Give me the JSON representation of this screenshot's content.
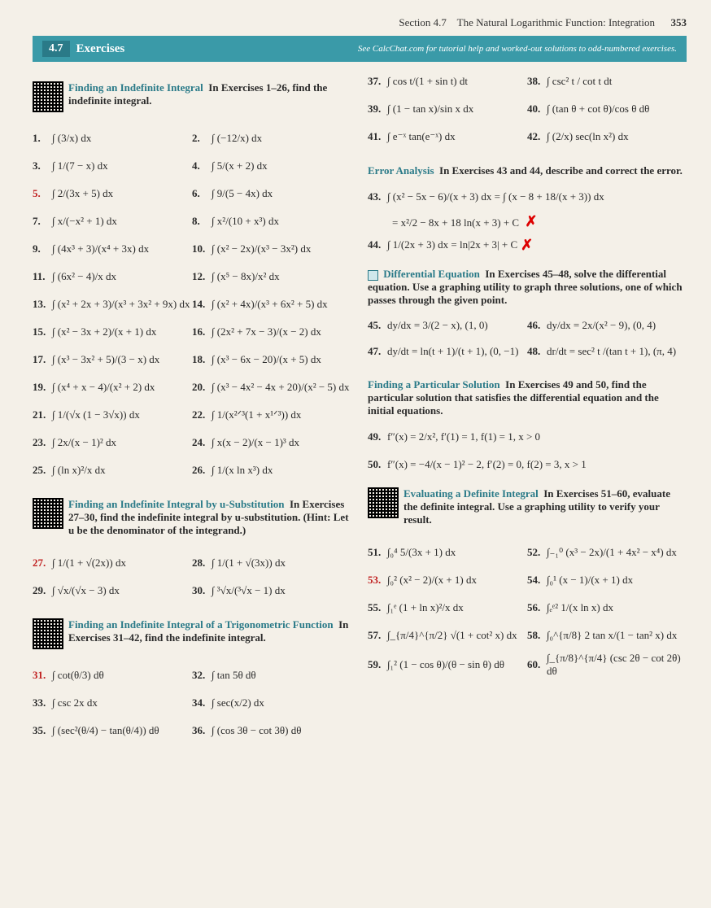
{
  "header": {
    "section_label": "Section 4.7",
    "section_title": "The Natural Logarithmic Function: Integration",
    "page_num": "353"
  },
  "bar": {
    "num": "4.7",
    "title": "Exercises",
    "help": "See CalcChat.com for tutorial help and worked-out solutions to odd-numbered exercises."
  },
  "groupA": {
    "title": "Finding an Indefinite Integral",
    "intro": "In Exercises 1–26, find the indefinite integral."
  },
  "left_col_A": [
    {
      "n": "1.",
      "e": "∫ (3/x) dx"
    },
    {
      "n": "2.",
      "e": "∫ (−12/x) dx"
    },
    {
      "n": "3.",
      "e": "∫ 1/(7 − x) dx"
    },
    {
      "n": "4.",
      "e": "∫ 5/(x + 2) dx"
    },
    {
      "n": "5.",
      "e": "∫ 2/(3x + 5) dx",
      "red": true
    },
    {
      "n": "6.",
      "e": "∫ 9/(5 − 4x) dx"
    },
    {
      "n": "7.",
      "e": "∫ x/(−x² + 1) dx"
    },
    {
      "n": "8.",
      "e": "∫ x²/(10 + x³) dx"
    },
    {
      "n": "9.",
      "e": "∫ (4x³ + 3)/(x⁴ + 3x) dx"
    },
    {
      "n": "10.",
      "e": "∫ (x² − 2x)/(x³ − 3x²) dx"
    },
    {
      "n": "11.",
      "e": "∫ (6x² − 4)/x dx"
    },
    {
      "n": "12.",
      "e": "∫ (x⁵ − 8x)/x² dx"
    },
    {
      "n": "13.",
      "e": "∫ (x² + 2x + 3)/(x³ + 3x² + 9x) dx"
    },
    {
      "n": "14.",
      "e": "∫ (x² + 4x)/(x³ + 6x² + 5) dx"
    },
    {
      "n": "15.",
      "e": "∫ (x² − 3x + 2)/(x + 1) dx"
    },
    {
      "n": "16.",
      "e": "∫ (2x² + 7x − 3)/(x − 2) dx"
    },
    {
      "n": "17.",
      "e": "∫ (x³ − 3x² + 5)/(3 − x) dx"
    },
    {
      "n": "18.",
      "e": "∫ (x³ − 6x − 20)/(x + 5) dx"
    },
    {
      "n": "19.",
      "e": "∫ (x⁴ + x − 4)/(x² + 2) dx"
    },
    {
      "n": "20.",
      "e": "∫ (x³ − 4x² − 4x + 20)/(x² − 5) dx"
    },
    {
      "n": "21.",
      "e": "∫ 1/(√x (1 − 3√x)) dx"
    },
    {
      "n": "22.",
      "e": "∫ 1/(x²ᐟ³(1 + x¹ᐟ³)) dx"
    },
    {
      "n": "23.",
      "e": "∫ 2x/(x − 1)² dx"
    },
    {
      "n": "24.",
      "e": "∫ x(x − 2)/(x − 1)³ dx"
    },
    {
      "n": "25.",
      "e": "∫ (ln x)²/x dx"
    },
    {
      "n": "26.",
      "e": "∫ 1/(x ln x³) dx"
    }
  ],
  "right_col_top": [
    {
      "n": "37.",
      "e": "∫ cos t/(1 + sin t) dt"
    },
    {
      "n": "38.",
      "e": "∫ csc² t / cot t dt"
    },
    {
      "n": "39.",
      "e": "∫ (1 − tan x)/sin x dx"
    },
    {
      "n": "40.",
      "e": "∫ (tan θ + cot θ)/cos θ dθ"
    },
    {
      "n": "41.",
      "e": "∫ e⁻ˣ tan(e⁻ˣ) dx"
    },
    {
      "n": "42.",
      "e": "∫ (2/x) sec(ln x²) dx"
    }
  ],
  "error_analysis": {
    "title": "Error Analysis",
    "intro": "In Exercises 43 and 44, describe and correct the error.",
    "l43a": "∫ (x² − 5x − 6)/(x + 3) dx = ∫ (x − 8 + 18/(x + 3)) dx",
    "l43b": "= x²/2 − 8x + 18 ln(x + 3) + C",
    "l44": "∫ 1/(2x + 3) dx = ln|2x + 3| + C"
  },
  "diff_eq": {
    "title": "Differential Equation",
    "intro": "In Exercises 45–48, solve the differential equation. Use a graphing utility to graph three solutions, one of which passes through the given point.",
    "items": [
      {
        "n": "45.",
        "e": "dy/dx = 3/(2 − x),  (1, 0)"
      },
      {
        "n": "46.",
        "e": "dy/dx = 2x/(x² − 9),  (0, 4)"
      },
      {
        "n": "47.",
        "e": "dy/dt = ln(t + 1)/(t + 1),  (0, −1)"
      },
      {
        "n": "48.",
        "e": "dr/dt = sec² t /(tan t + 1),  (π, 4)"
      }
    ]
  },
  "particular": {
    "title": "Finding a Particular Solution",
    "intro": "In Exercises 49 and 50, find the particular solution that satisfies the differential equation and the initial equations.",
    "items": [
      {
        "n": "49.",
        "e": "f″(x) = 2/x², f′(1) = 1, f(1) = 1, x > 0"
      },
      {
        "n": "50.",
        "e": "f″(x) = −4/(x − 1)² − 2, f′(2) = 0, f(2) = 3, x > 1"
      }
    ]
  },
  "groupB": {
    "title": "Finding an Indefinite Integral by u-Substitution",
    "intro": "In Exercises 27–30, find the indefinite integral by u-substitution. (Hint: Let u be the denominator of the integrand.)"
  },
  "listB": [
    {
      "n": "27.",
      "e": "∫ 1/(1 + √(2x)) dx",
      "red": true
    },
    {
      "n": "28.",
      "e": "∫ 1/(1 + √(3x)) dx"
    },
    {
      "n": "29.",
      "e": "∫ √x/(√x − 3) dx"
    },
    {
      "n": "30.",
      "e": "∫ ³√x/(³√x − 1) dx"
    }
  ],
  "groupC": {
    "title": "Finding an Indefinite Integral of a Trigonometric Function",
    "intro": "In Exercises 31–42, find the indefinite integral."
  },
  "listC": [
    {
      "n": "31.",
      "e": "∫ cot(θ/3) dθ",
      "red": true
    },
    {
      "n": "32.",
      "e": "∫ tan 5θ dθ"
    },
    {
      "n": "33.",
      "e": "∫ csc 2x dx"
    },
    {
      "n": "34.",
      "e": "∫ sec(x/2) dx"
    },
    {
      "n": "35.",
      "e": "∫ (sec²(θ/4) − tan(θ/4)) dθ"
    },
    {
      "n": "36.",
      "e": "∫ (cos 3θ − cot 3θ) dθ"
    }
  ],
  "definite": {
    "title": "Evaluating a Definite Integral",
    "intro": "In Exercises 51–60, evaluate the definite integral. Use a graphing utility to verify your result.",
    "items": [
      {
        "n": "51.",
        "e": "∫₀⁴ 5/(3x + 1) dx"
      },
      {
        "n": "52.",
        "e": "∫₋₁⁰ (x³ − 2x)/(1 + 4x² − x⁴) dx"
      },
      {
        "n": "53.",
        "e": "∫₀² (x² − 2)/(x + 1) dx",
        "red": true
      },
      {
        "n": "54.",
        "e": "∫₀¹ (x − 1)/(x + 1) dx"
      },
      {
        "n": "55.",
        "e": "∫₁ᵉ (1 + ln x)²/x dx"
      },
      {
        "n": "56.",
        "e": "∫ₑᵉ² 1/(x ln x) dx"
      },
      {
        "n": "57.",
        "e": "∫_{π/4}^{π/2} √(1 + cot² x) dx"
      },
      {
        "n": "58.",
        "e": "∫₀^{π/8} 2 tan x/(1 − tan² x) dx"
      },
      {
        "n": "59.",
        "e": "∫₁² (1 − cos θ)/(θ − sin θ) dθ"
      },
      {
        "n": "60.",
        "e": "∫_{π/8}^{π/4} (csc 2θ − cot 2θ) dθ"
      }
    ]
  },
  "labels": {
    "n43": "43.",
    "n44": "44."
  }
}
